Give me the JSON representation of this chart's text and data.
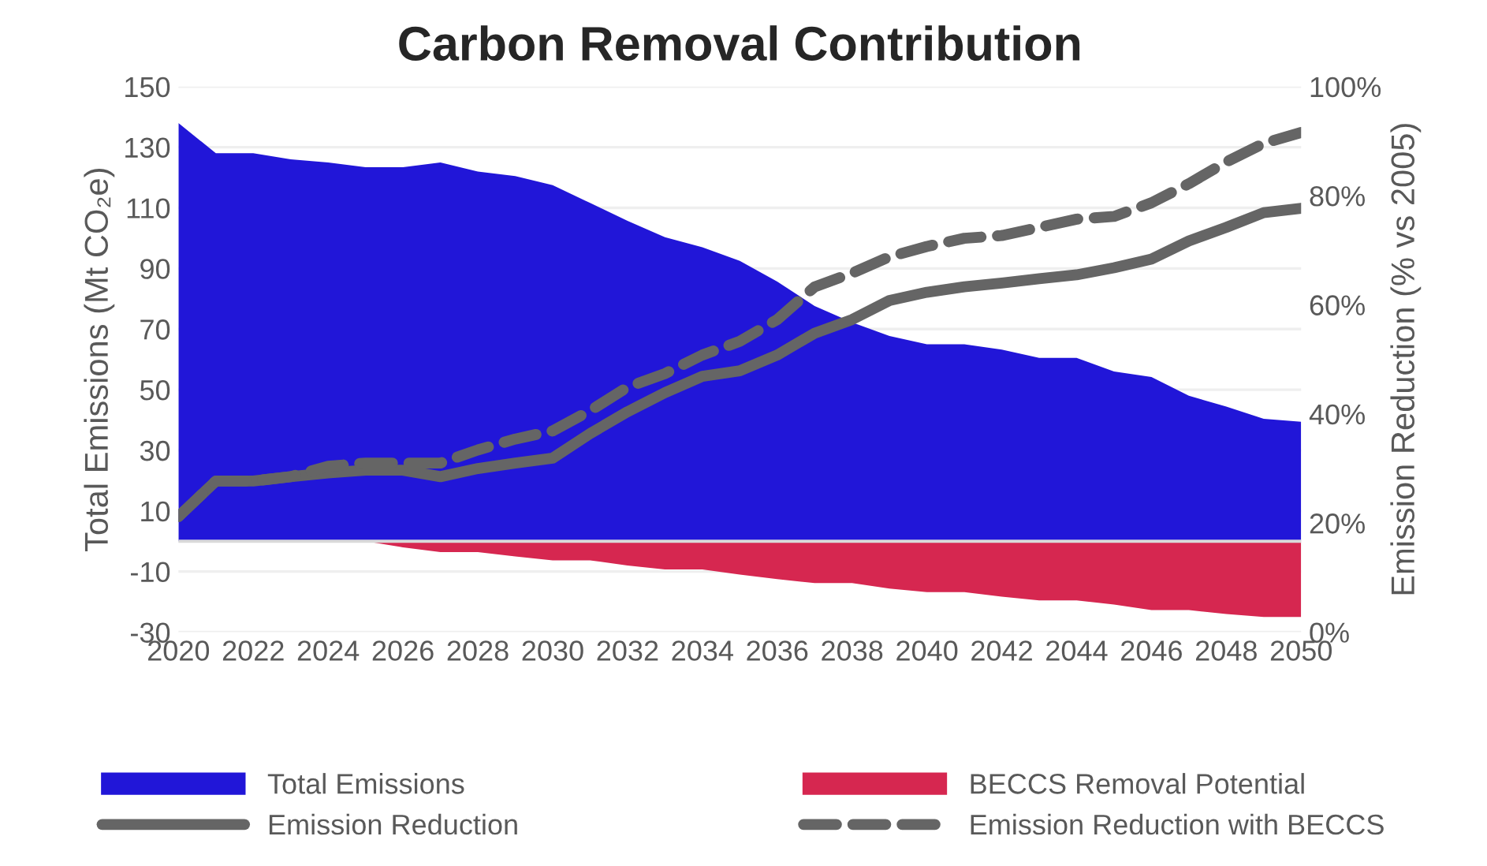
{
  "chart_data": {
    "type": "area",
    "title": "Carbon Removal Contribution",
    "ylabel": "Total Emissions (Mt CO₂e)",
    "y2label": "Emission Reduction (% vs 2005)",
    "x": [
      2020,
      2021,
      2022,
      2023,
      2024,
      2025,
      2026,
      2027,
      2028,
      2029,
      2030,
      2031,
      2032,
      2033,
      2034,
      2035,
      2036,
      2037,
      2038,
      2039,
      2040,
      2041,
      2042,
      2043,
      2044,
      2045,
      2046,
      2047,
      2048,
      2049,
      2050
    ],
    "series": [
      {
        "name": "Total Emissions",
        "color": "#2116d8",
        "values": [
          138,
          128,
          128,
          126,
          125,
          123.4,
          123.4,
          125,
          122,
          120.5,
          117.5,
          111.6,
          105.7,
          100.3,
          97,
          92.5,
          85.7,
          77.6,
          72.2,
          67.7,
          65,
          65,
          63.2,
          60.5,
          60.5,
          56,
          54.2,
          48,
          44.4,
          40.4,
          39.4
        ]
      },
      {
        "name": "BECCS Removal Potential",
        "color": "#d62750",
        "values": [
          0,
          0,
          0,
          0,
          0,
          0,
          -2,
          -3.6,
          -3.6,
          -5,
          -6.3,
          -6.3,
          -8,
          -9.3,
          -9.3,
          -11,
          -12.5,
          -13.8,
          -13.8,
          -15.6,
          -16.8,
          -16.8,
          -18.3,
          -19.5,
          -19.5,
          -20.9,
          -22.7,
          -22.7,
          -24,
          -25,
          -25
        ]
      },
      {
        "name": "Emission Reduction",
        "type": "line",
        "axis": "y2",
        "line_style": "solid",
        "color": "#656565",
        "values": [
          21.2,
          27.7,
          27.7,
          28.5,
          29.2,
          29.7,
          29.7,
          28.5,
          30,
          31,
          31.9,
          36.4,
          40.4,
          43.9,
          46.9,
          47.9,
          50.8,
          54.8,
          57.3,
          60.8,
          62.3,
          63.3,
          64,
          64.8,
          65.5,
          66.8,
          68.4,
          71.7,
          74.2,
          76.9,
          77.7
        ]
      },
      {
        "name": "Emission Reduction with BECCS",
        "type": "line",
        "axis": "y2",
        "line_style": "dashed",
        "color": "#656565",
        "values": [
          21.2,
          27.7,
          27.7,
          28.5,
          30.4,
          31,
          31,
          31,
          33.4,
          35.4,
          36.9,
          40.6,
          44.9,
          47.4,
          50.8,
          53.3,
          57.3,
          63.3,
          65.8,
          68.8,
          70.7,
          72.2,
          72.7,
          74.2,
          75.7,
          76.2,
          78.7,
          82.2,
          86.2,
          89.6,
          91.6
        ]
      }
    ],
    "xlim": [
      2020,
      2050
    ],
    "xticks": [
      2020,
      2022,
      2024,
      2026,
      2028,
      2030,
      2032,
      2034,
      2036,
      2038,
      2040,
      2042,
      2044,
      2046,
      2048,
      2050
    ],
    "ylim": [
      -30,
      150
    ],
    "yticks": [
      -30,
      -10,
      10,
      30,
      50,
      70,
      90,
      110,
      130,
      150
    ],
    "y2lim": [
      0,
      100
    ],
    "y2ticks": [
      {
        "value": 0,
        "label": "0%"
      },
      {
        "value": 20,
        "label": "20%"
      },
      {
        "value": 40,
        "label": "40%"
      },
      {
        "value": 60,
        "label": "60%"
      },
      {
        "value": 80,
        "label": "80%"
      },
      {
        "value": 100,
        "label": "100%"
      }
    ],
    "ref_lines": [
      {
        "axis": "y",
        "value": 0,
        "color": "#d9d9d9"
      }
    ],
    "grid": "y",
    "legend": "bottom"
  }
}
